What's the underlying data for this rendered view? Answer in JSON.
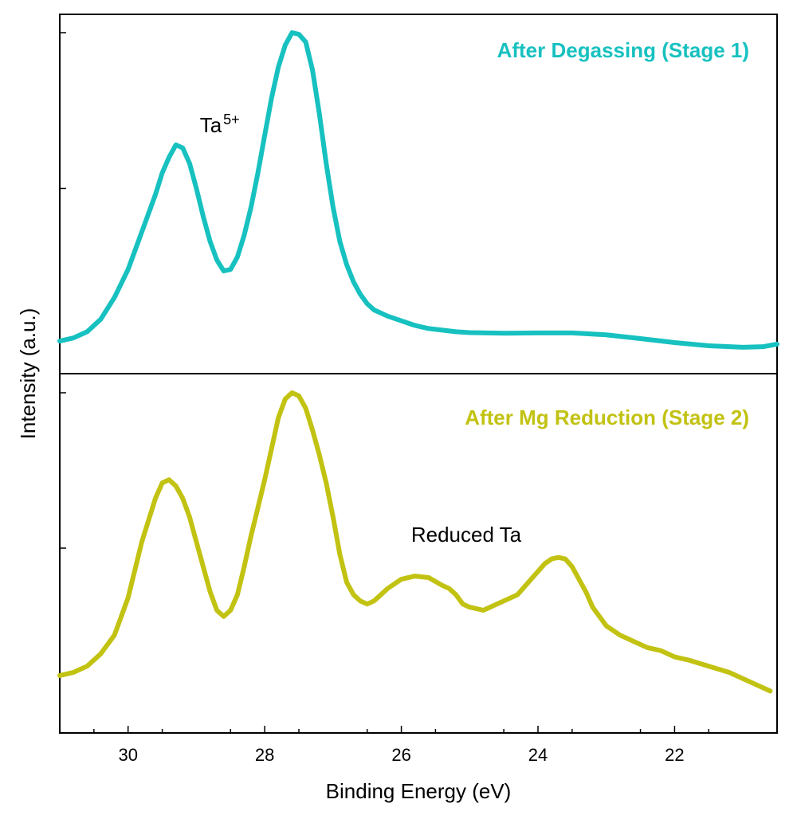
{
  "chart_data": {
    "type": "line",
    "xlabel": "Binding Energy (eV)",
    "ylabel": "Intensity (a.u.)",
    "xlim": [
      31.0,
      20.5
    ],
    "x_reversed": true,
    "xticks": [
      30,
      28,
      26,
      24,
      22
    ],
    "x_tick_labels": [
      "30",
      "28",
      "26",
      "24",
      "22"
    ],
    "x_minor_ticks": [
      30.5,
      29.5,
      28.5,
      27.5,
      26.5,
      25.5,
      24.5,
      23.5,
      22.5,
      21.5,
      20.5
    ],
    "colors": {
      "stage1": "#17c1c0",
      "stage2": "#c2c212"
    },
    "panels": [
      {
        "title": "After Degassing (Stage 1)",
        "color": "#17c1c0",
        "ylim": [
          0,
          1.06
        ],
        "yticks": [
          0.5,
          1.0
        ],
        "annotation": {
          "base": "Ta",
          "sup": "5+",
          "x": 28.95,
          "y": 0.68
        },
        "series": {
          "name": "After Degassing (Stage 1)",
          "x": [
            31.0,
            30.8,
            30.6,
            30.4,
            30.2,
            30.0,
            29.8,
            29.6,
            29.5,
            29.4,
            29.3,
            29.2,
            29.1,
            29.0,
            28.9,
            28.8,
            28.7,
            28.6,
            28.5,
            28.4,
            28.3,
            28.2,
            28.1,
            28.0,
            27.9,
            27.8,
            27.7,
            27.6,
            27.5,
            27.4,
            27.3,
            27.2,
            27.1,
            27.0,
            26.9,
            26.8,
            26.7,
            26.6,
            26.5,
            26.4,
            26.2,
            26.0,
            25.8,
            25.6,
            25.4,
            25.2,
            25.0,
            24.5,
            24.0,
            23.5,
            23.0,
            22.5,
            22.0,
            21.5,
            21.0,
            20.7,
            20.5
          ],
          "y": [
            0.01,
            0.02,
            0.04,
            0.08,
            0.15,
            0.24,
            0.36,
            0.48,
            0.55,
            0.6,
            0.64,
            0.63,
            0.58,
            0.5,
            0.41,
            0.33,
            0.27,
            0.235,
            0.24,
            0.28,
            0.35,
            0.44,
            0.55,
            0.67,
            0.79,
            0.89,
            0.96,
            1.0,
            0.995,
            0.97,
            0.88,
            0.74,
            0.58,
            0.44,
            0.33,
            0.255,
            0.2,
            0.16,
            0.13,
            0.11,
            0.09,
            0.075,
            0.06,
            0.05,
            0.045,
            0.04,
            0.037,
            0.035,
            0.036,
            0.036,
            0.03,
            0.018,
            0.005,
            -0.005,
            -0.01,
            -0.008,
            0.0
          ]
        }
      },
      {
        "title": "After Mg Reduction (Stage 2)",
        "color": "#c2c212",
        "ylim": [
          0,
          1.06
        ],
        "yticks": [
          0.5,
          1.0
        ],
        "annotation": {
          "text": "Reduced Ta",
          "x": 25.05,
          "y": 0.52
        },
        "series": {
          "name": "After Mg Reduction (Stage 2)",
          "x": [
            31.0,
            30.8,
            30.6,
            30.4,
            30.2,
            30.0,
            29.8,
            29.6,
            29.5,
            29.4,
            29.3,
            29.2,
            29.1,
            29.0,
            28.9,
            28.8,
            28.7,
            28.6,
            28.5,
            28.4,
            28.3,
            28.2,
            28.1,
            28.0,
            27.9,
            27.8,
            27.7,
            27.6,
            27.5,
            27.4,
            27.3,
            27.2,
            27.1,
            27.0,
            26.9,
            26.8,
            26.7,
            26.6,
            26.5,
            26.4,
            26.3,
            26.2,
            26.0,
            25.8,
            25.6,
            25.4,
            25.3,
            25.2,
            25.1,
            25.0,
            24.8,
            24.7,
            24.5,
            24.3,
            24.1,
            23.9,
            23.8,
            23.7,
            23.6,
            23.5,
            23.4,
            23.3,
            23.2,
            23.0,
            22.8,
            22.6,
            22.4,
            22.2,
            22.0,
            21.8,
            21.5,
            21.2,
            21.0,
            20.8,
            20.6
          ],
          "y": [
            0.09,
            0.1,
            0.12,
            0.16,
            0.22,
            0.34,
            0.52,
            0.66,
            0.71,
            0.72,
            0.7,
            0.66,
            0.6,
            0.52,
            0.44,
            0.36,
            0.3,
            0.28,
            0.3,
            0.35,
            0.44,
            0.54,
            0.63,
            0.72,
            0.82,
            0.92,
            0.98,
            1.0,
            0.99,
            0.95,
            0.88,
            0.8,
            0.71,
            0.6,
            0.48,
            0.39,
            0.35,
            0.33,
            0.32,
            0.33,
            0.35,
            0.37,
            0.4,
            0.41,
            0.405,
            0.38,
            0.37,
            0.35,
            0.32,
            0.31,
            0.3,
            0.31,
            0.33,
            0.35,
            0.4,
            0.45,
            0.465,
            0.47,
            0.465,
            0.44,
            0.4,
            0.36,
            0.31,
            0.25,
            0.22,
            0.2,
            0.18,
            0.17,
            0.15,
            0.14,
            0.12,
            0.1,
            0.08,
            0.06,
            0.04
          ]
        }
      }
    ]
  }
}
